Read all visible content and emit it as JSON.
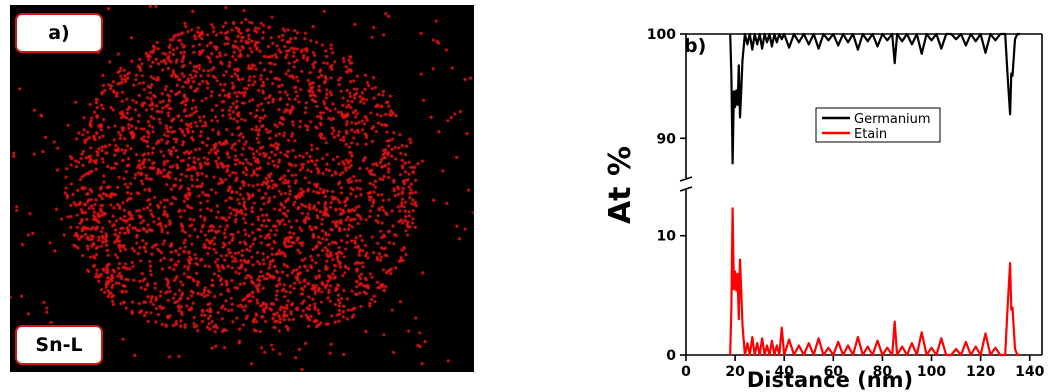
{
  "panel_a": {
    "label": "a)",
    "element_label": "Sn-L",
    "dot_color": "#e01515"
  },
  "chart_data": {
    "type": "line",
    "panel_label": "b)",
    "title": "",
    "xlabel": "Distance (nm)",
    "ylabel": "At %",
    "xlim": [
      0,
      145
    ],
    "x_ticks": [
      0,
      20,
      40,
      60,
      80,
      100,
      120,
      140
    ],
    "axis_break": true,
    "upper_axis": {
      "ylim": [
        86,
        100
      ],
      "ticks": [
        90,
        100
      ]
    },
    "lower_axis": {
      "ylim": [
        0,
        14
      ],
      "ticks": [
        0,
        10
      ]
    },
    "legend_position": "center-right",
    "series": [
      {
        "name": "Germanium",
        "color": "#000000",
        "x": [
          18,
          18.5,
          19,
          19.5,
          20,
          20.5,
          21,
          21.5,
          22,
          22.5,
          23,
          24,
          25,
          26,
          27,
          28,
          29,
          30,
          31,
          32,
          33,
          34,
          35,
          36,
          37,
          38,
          39,
          40,
          42,
          44,
          46,
          48,
          50,
          52,
          54,
          56,
          58,
          60,
          62,
          64,
          66,
          68,
          70,
          72,
          74,
          76,
          78,
          80,
          82,
          84,
          85,
          86,
          88,
          90,
          92,
          94,
          96,
          98,
          100,
          102,
          104,
          106,
          108,
          110,
          112,
          114,
          116,
          118,
          120,
          122,
          124,
          126,
          128,
          130,
          131,
          132,
          132.5,
          133,
          134,
          135,
          136
        ],
        "values": [
          100,
          96,
          87.6,
          94.5,
          93,
          94.6,
          93.2,
          97,
          92,
          94.5,
          97.5,
          100,
          99,
          100,
          98.5,
          100,
          99,
          100,
          98.6,
          100,
          99.2,
          100,
          98.8,
          100,
          99.2,
          100,
          99.5,
          100,
          98.7,
          100,
          99.2,
          100,
          99,
          100,
          98.6,
          100,
          99.4,
          100,
          98.9,
          100,
          99.2,
          100,
          98.5,
          100,
          99.3,
          100,
          98.8,
          100,
          99.4,
          100,
          97.2,
          100,
          99.3,
          100,
          99,
          100,
          98.1,
          100,
          99.4,
          100,
          98.6,
          100,
          100,
          99.5,
          100,
          98.9,
          100,
          99.3,
          100,
          98.2,
          100,
          99.4,
          100,
          100,
          96,
          92.3,
          96.2,
          96,
          99.5,
          100,
          100
        ]
      },
      {
        "name": "Etain",
        "color": "#ff0000",
        "x": [
          18,
          18.5,
          19,
          19.5,
          20,
          20.5,
          21,
          21.5,
          22,
          22.5,
          23,
          24,
          25,
          26,
          27,
          28,
          29,
          30,
          31,
          32,
          33,
          34,
          35,
          36,
          37,
          38,
          39,
          40,
          42,
          44,
          46,
          48,
          50,
          52,
          54,
          56,
          58,
          60,
          62,
          64,
          66,
          68,
          70,
          72,
          74,
          76,
          78,
          80,
          82,
          84,
          85,
          86,
          88,
          90,
          92,
          94,
          96,
          98,
          100,
          102,
          104,
          106,
          108,
          110,
          112,
          114,
          116,
          118,
          120,
          122,
          124,
          126,
          128,
          130,
          131,
          132,
          132.5,
          133,
          134,
          135,
          136
        ],
        "values": [
          0,
          4,
          12.3,
          5.5,
          7,
          5.4,
          6.8,
          3,
          8,
          5.5,
          2.5,
          0,
          1,
          0,
          1.5,
          0,
          1,
          0,
          1.4,
          0,
          0.8,
          0,
          1.2,
          0,
          0.8,
          0,
          2.3,
          0,
          1.3,
          0,
          0.8,
          0,
          1,
          0,
          1.4,
          0,
          0.6,
          0,
          1.1,
          0,
          0.8,
          0,
          1.5,
          0,
          0.7,
          0,
          1.2,
          0,
          0.6,
          0,
          2.8,
          0,
          0.7,
          0,
          1,
          0,
          1.9,
          0,
          0.6,
          0,
          1.4,
          0,
          0,
          0.5,
          0,
          1.1,
          0,
          0.7,
          0,
          1.8,
          0,
          0.6,
          0,
          0,
          4,
          7.7,
          3.8,
          4,
          0.5,
          0,
          0
        ]
      }
    ]
  }
}
